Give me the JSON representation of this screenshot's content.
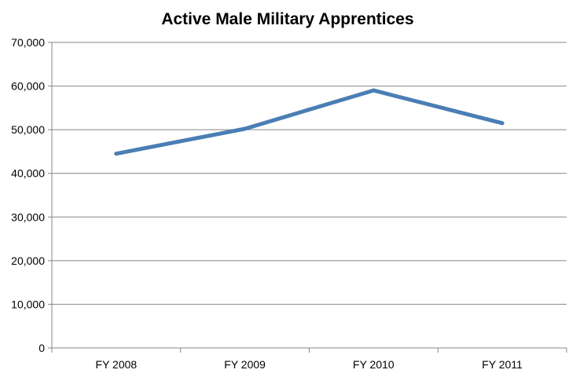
{
  "chart_data": {
    "type": "line",
    "title": "Active Male Military Apprentices",
    "xlabel": "",
    "ylabel": "",
    "categories": [
      "FY 2008",
      "FY 2009",
      "FY 2010",
      "FY 2011"
    ],
    "series": [
      {
        "name": "Active Male Military Apprentices",
        "values": [
          44500,
          50200,
          59000,
          51500
        ],
        "color": "#4a7eb4"
      }
    ],
    "ylim": [
      0,
      70000
    ],
    "yticks": [
      0,
      10000,
      20000,
      30000,
      40000,
      50000,
      60000,
      70000
    ],
    "ytick_labels": [
      "0",
      "10,000",
      "20,000",
      "30,000",
      "40,000",
      "50,000",
      "60,000",
      "70,000"
    ],
    "grid": true,
    "legend": "none"
  }
}
